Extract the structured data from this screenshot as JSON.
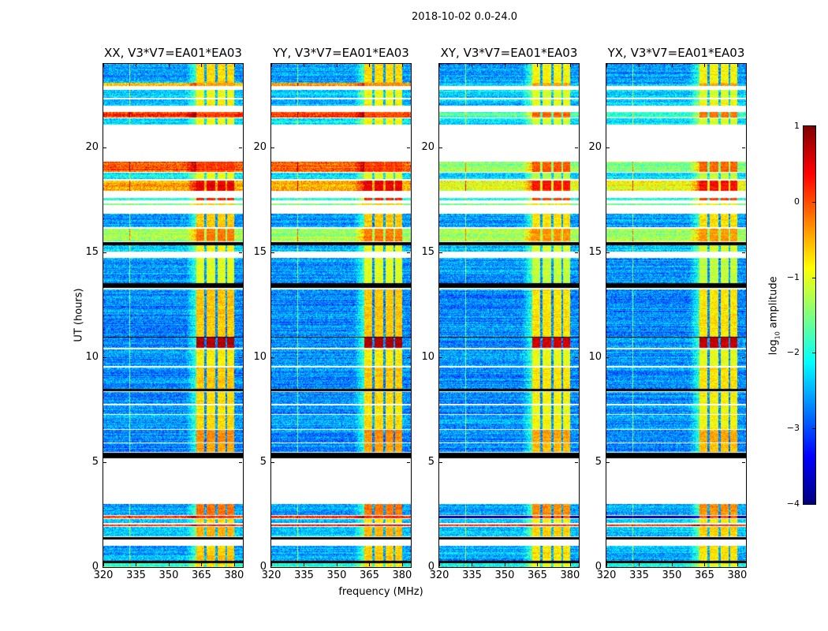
{
  "chart_data": {
    "type": "heatmap",
    "suptitle": "2018-10-02 0.0-24.0",
    "xlabel": "frequency (MHz)",
    "ylabel": "UT (hours)",
    "xlim": [
      320,
      384
    ],
    "ylim": [
      0,
      24
    ],
    "xticks": [
      "320",
      "335",
      "350",
      "365",
      "380"
    ],
    "xtick_values": [
      320,
      335,
      350,
      365,
      380
    ],
    "yticks": [
      "0",
      "5",
      "10",
      "15",
      "20"
    ],
    "ytick_values": [
      0,
      5,
      10,
      15,
      20
    ],
    "colormap": "jet",
    "colorbar": {
      "label_main": "log",
      "label_sub": "10",
      "label_rest": " amplitude",
      "range": [
        -4,
        1
      ],
      "ticks": [
        "1",
        "0",
        "−1",
        "−2",
        "−3",
        "−4"
      ],
      "tick_values": [
        1,
        0,
        -1,
        -2,
        -3,
        -4
      ]
    },
    "panels": [
      {
        "title": "XX, V3*V7=EA01*EA03",
        "cross": false
      },
      {
        "title": "YY, V3*V7=EA01*EA03",
        "cross": false
      },
      {
        "title": "XY, V3*V7=EA01*EA03",
        "cross": true
      },
      {
        "title": "YX, V3*V7=EA01*EA03",
        "cross": true
      }
    ],
    "rfi_columns_mhz": [
      [
        362.5,
        366.3
      ],
      [
        367.3,
        371.4
      ],
      [
        372.3,
        375.9
      ],
      [
        376.8,
        380.2
      ]
    ],
    "segments_hours": [
      {
        "t": [
          23.1,
          24.0
        ],
        "base": -2.6,
        "band": -0.7
      },
      {
        "t": [
          22.95,
          23.1
        ],
        "base": -0.4,
        "band": -0.3,
        "xbase": -2.4
      },
      {
        "t": [
          22.4,
          22.75
        ],
        "base": -2.3,
        "band": -0.9
      },
      {
        "t": [
          22.0,
          22.3
        ],
        "base": -2.4,
        "band": -0.8
      },
      {
        "t": [
          21.45,
          21.7
        ],
        "base": 0.1,
        "band": 0.0,
        "xbase": -1.8
      },
      {
        "t": [
          21.1,
          21.4
        ],
        "base": -2.2,
        "band": -0.9
      },
      {
        "t": [
          18.85,
          19.35
        ],
        "base": -0.1,
        "band": 0.1,
        "xbase": -1.4
      },
      {
        "t": [
          18.5,
          18.8
        ],
        "base": -2.2,
        "band": -1.0
      },
      {
        "t": [
          17.95,
          18.45
        ],
        "base": -0.5,
        "band": 0.45,
        "xbase": -1.0
      },
      {
        "t": [
          17.5,
          17.6
        ],
        "base": -2.0,
        "band": 0.2
      },
      {
        "t": [
          17.25,
          17.35
        ],
        "base": -1.5,
        "band": -0.6
      },
      {
        "t": [
          16.2,
          16.85
        ],
        "base": -2.6,
        "band": -0.6
      },
      {
        "t": [
          15.55,
          16.15
        ],
        "base": -1.3,
        "band": -0.2
      },
      {
        "t": [
          15.35,
          15.5
        ],
        "black": true
      },
      {
        "t": [
          15.05,
          15.35
        ],
        "base": -2.4,
        "band": -0.9
      },
      {
        "t": [
          13.55,
          14.75
        ],
        "base": -2.6,
        "band": -1.0
      },
      {
        "t": [
          13.3,
          13.55
        ],
        "black": true
      },
      {
        "t": [
          11.0,
          13.25
        ],
        "base": -2.7,
        "band": -0.6
      },
      {
        "t": [
          10.95,
          11.0
        ],
        "black": true
      },
      {
        "t": [
          10.45,
          10.95
        ],
        "base": -2.7,
        "band": 0.75
      },
      {
        "t": [
          9.6,
          10.4
        ],
        "base": -2.6,
        "band": -0.8
      },
      {
        "t": [
          8.5,
          9.5
        ],
        "base": -2.7,
        "band": -0.6
      },
      {
        "t": [
          8.4,
          8.5
        ],
        "black": true
      },
      {
        "t": [
          7.8,
          8.35
        ],
        "base": -2.7,
        "band": -0.7
      },
      {
        "t": [
          7.3,
          7.7
        ],
        "base": -2.7,
        "band": -0.8
      },
      {
        "t": [
          6.6,
          7.25
        ],
        "base": -2.6,
        "band": -0.7
      },
      {
        "t": [
          5.95,
          6.55
        ],
        "base": -2.7,
        "band": -0.3
      },
      {
        "t": [
          5.5,
          5.9
        ],
        "base": -2.7,
        "band": -0.4
      },
      {
        "t": [
          5.2,
          5.45
        ],
        "black": true
      },
      {
        "t": [
          2.5,
          3.0
        ],
        "base": -2.6,
        "band": -0.2
      },
      {
        "t": [
          2.35,
          2.45
        ],
        "base": 0.1,
        "band": 0.2,
        "xbase": -3.9
      },
      {
        "t": [
          2.1,
          2.3
        ],
        "base": -2.4,
        "band": -0.7
      },
      {
        "t": [
          1.95,
          2.05
        ],
        "base": 0.2,
        "band": 0.3
      },
      {
        "t": [
          1.45,
          1.9
        ],
        "base": -2.4,
        "band": -0.5
      },
      {
        "t": [
          1.3,
          1.42
        ],
        "black": true
      },
      {
        "t": [
          0.3,
          1.0
        ],
        "base": -2.5,
        "band": -0.6
      },
      {
        "t": [
          0.2,
          0.3
        ],
        "black": true
      },
      {
        "t": [
          0.0,
          0.2
        ],
        "base": -2.0,
        "band": -0.8
      }
    ]
  }
}
